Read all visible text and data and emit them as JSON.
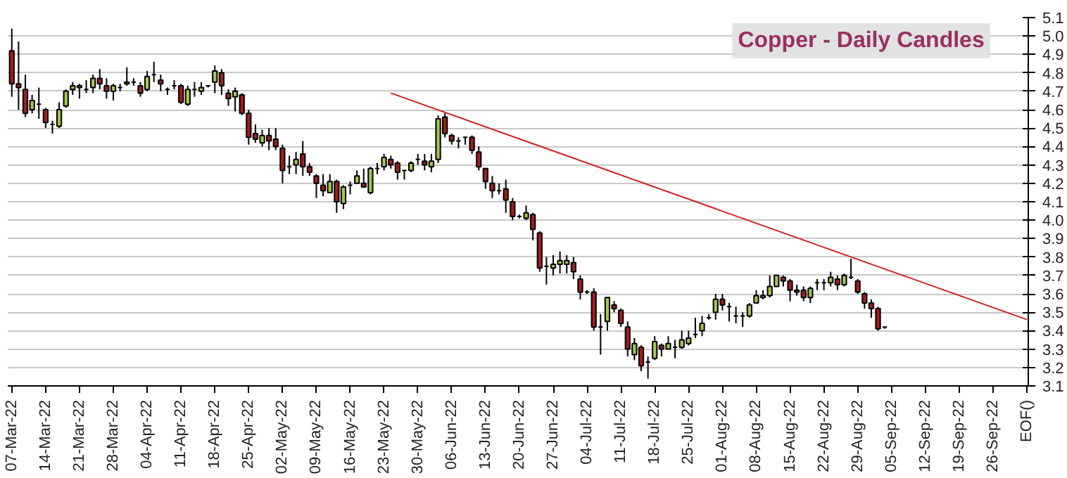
{
  "chart_data": {
    "type": "candlestick",
    "title": "Copper - Daily Candles",
    "categories": [
      "07-Mar-22",
      null,
      null,
      null,
      null,
      "14-Mar-22",
      null,
      null,
      null,
      null,
      "21-Mar-22",
      null,
      null,
      null,
      null,
      "28-Mar-22",
      null,
      null,
      null,
      null,
      "04-Apr-22",
      null,
      null,
      null,
      null,
      "11-Apr-22",
      null,
      null,
      null,
      null,
      "18-Apr-22",
      null,
      null,
      null,
      null,
      "25-Apr-22",
      null,
      null,
      null,
      null,
      "02-May-22",
      null,
      null,
      null,
      null,
      "09-May-22",
      null,
      null,
      null,
      null,
      "16-May-22",
      null,
      null,
      null,
      null,
      "23-May-22",
      null,
      null,
      null,
      null,
      "30-May-22",
      null,
      null,
      null,
      null,
      "06-Jun-22",
      null,
      null,
      null,
      null,
      "13-Jun-22",
      null,
      null,
      null,
      null,
      "20-Jun-22",
      null,
      null,
      null,
      null,
      "27-Jun-22",
      null,
      null,
      null,
      null,
      "04-Jul-22",
      null,
      null,
      null,
      null,
      "11-Jul-22",
      null,
      null,
      null,
      null,
      "18-Jul-22",
      null,
      null,
      null,
      null,
      "25-Jul-22",
      null,
      null,
      null,
      null,
      "01-Aug-22",
      null,
      null,
      null,
      null,
      "08-Aug-22",
      null,
      null,
      null,
      null,
      "15-Aug-22",
      null,
      null,
      null,
      null,
      "22-Aug-22",
      null,
      null,
      null,
      null,
      "29-Aug-22",
      null,
      null,
      null,
      null,
      "05-Sep-22",
      null,
      null,
      null,
      null,
      "12-Sep-22",
      null,
      null,
      null,
      null,
      "19-Sep-22",
      null,
      null,
      null,
      null,
      "26-Sep-22",
      null,
      null,
      null,
      null,
      "EOF()"
    ],
    "ohlc": [
      [
        4.92,
        5.04,
        4.67,
        4.74
      ],
      [
        4.74,
        4.97,
        4.6,
        4.72
      ],
      [
        4.71,
        4.79,
        4.56,
        4.58
      ],
      [
        4.6,
        4.68,
        4.58,
        4.65
      ],
      [
        4.63,
        4.72,
        4.55,
        4.63
      ],
      [
        4.6,
        4.61,
        4.5,
        4.53
      ],
      [
        4.52,
        4.54,
        4.47,
        4.52
      ],
      [
        4.51,
        4.64,
        4.5,
        4.6
      ],
      [
        4.62,
        4.71,
        4.61,
        4.7
      ],
      [
        4.71,
        4.75,
        4.68,
        4.73
      ],
      [
        4.72,
        4.74,
        4.66,
        4.73
      ],
      [
        4.71,
        4.76,
        4.69,
        4.71
      ],
      [
        4.72,
        4.79,
        4.69,
        4.77
      ],
      [
        4.77,
        4.82,
        4.71,
        4.74
      ],
      [
        4.73,
        4.77,
        4.66,
        4.7
      ],
      [
        4.7,
        4.74,
        4.65,
        4.73
      ],
      [
        4.72,
        4.74,
        4.7,
        4.72
      ],
      [
        4.74,
        4.83,
        4.73,
        4.75
      ],
      [
        4.75,
        4.77,
        4.73,
        4.75
      ],
      [
        4.73,
        4.75,
        4.67,
        4.69
      ],
      [
        4.71,
        4.81,
        4.7,
        4.78
      ],
      [
        4.79,
        4.86,
        4.75,
        4.79
      ],
      [
        4.76,
        4.79,
        4.7,
        4.74
      ],
      [
        4.71,
        4.72,
        4.68,
        4.71
      ],
      [
        4.73,
        4.76,
        4.71,
        4.73
      ],
      [
        4.73,
        4.74,
        4.63,
        4.64
      ],
      [
        4.63,
        4.73,
        4.62,
        4.71
      ],
      [
        4.71,
        4.75,
        4.67,
        4.71
      ],
      [
        4.7,
        4.75,
        4.68,
        4.72
      ],
      [
        4.73,
        4.73,
        4.72,
        4.73
      ],
      [
        4.75,
        4.84,
        4.69,
        4.81
      ],
      [
        4.8,
        4.82,
        4.68,
        4.73
      ],
      [
        4.69,
        4.71,
        4.62,
        4.66
      ],
      [
        4.67,
        4.72,
        4.59,
        4.7
      ],
      [
        4.68,
        4.69,
        4.57,
        4.58
      ],
      [
        4.58,
        4.6,
        4.41,
        4.45
      ],
      [
        4.47,
        4.52,
        4.42,
        4.44
      ],
      [
        4.42,
        4.49,
        4.4,
        4.46
      ],
      [
        4.46,
        4.5,
        4.38,
        4.43
      ],
      [
        4.44,
        4.5,
        4.38,
        4.4
      ],
      [
        4.39,
        4.41,
        4.2,
        4.27
      ],
      [
        4.29,
        4.35,
        4.25,
        4.29
      ],
      [
        4.3,
        4.37,
        4.25,
        4.33
      ],
      [
        4.36,
        4.43,
        4.24,
        4.29
      ],
      [
        4.29,
        4.31,
        4.24,
        4.26
      ],
      [
        4.24,
        4.25,
        4.12,
        4.2
      ],
      [
        4.19,
        4.25,
        4.13,
        4.16
      ],
      [
        4.15,
        4.25,
        4.15,
        4.21
      ],
      [
        4.21,
        4.22,
        4.04,
        4.1
      ],
      [
        4.09,
        4.19,
        4.06,
        4.18
      ],
      [
        4.19,
        4.21,
        4.14,
        4.19
      ],
      [
        4.2,
        4.27,
        4.2,
        4.24
      ],
      [
        4.2,
        4.28,
        4.18,
        4.18
      ],
      [
        4.15,
        4.29,
        4.14,
        4.28
      ],
      [
        4.28,
        4.31,
        4.25,
        4.28
      ],
      [
        4.29,
        4.36,
        4.27,
        4.34
      ],
      [
        4.33,
        4.35,
        4.28,
        4.3
      ],
      [
        4.31,
        4.32,
        4.22,
        4.26
      ],
      [
        4.27,
        4.27,
        4.22,
        4.27
      ],
      [
        4.27,
        4.32,
        4.26,
        4.31
      ],
      [
        4.33,
        4.36,
        4.3,
        4.33
      ],
      [
        4.32,
        4.36,
        4.27,
        4.3
      ],
      [
        4.29,
        4.36,
        4.26,
        4.32
      ],
      [
        4.33,
        4.57,
        4.31,
        4.55
      ],
      [
        4.56,
        4.58,
        4.45,
        4.47
      ],
      [
        4.46,
        4.47,
        4.41,
        4.43
      ],
      [
        4.43,
        4.45,
        4.39,
        4.43
      ],
      [
        4.45,
        4.45,
        4.41,
        4.45
      ],
      [
        4.45,
        4.46,
        4.36,
        4.38
      ],
      [
        4.37,
        4.4,
        4.27,
        4.29
      ],
      [
        4.28,
        4.28,
        4.17,
        4.21
      ],
      [
        4.2,
        4.24,
        4.12,
        4.16
      ],
      [
        4.16,
        4.2,
        4.14,
        4.16
      ],
      [
        4.17,
        4.22,
        4.04,
        4.11
      ],
      [
        4.1,
        4.12,
        4.0,
        4.02
      ],
      [
        4.02,
        4.03,
        4.01,
        4.02
      ],
      [
        4.01,
        4.08,
        4.0,
        4.04
      ],
      [
        4.03,
        4.04,
        3.89,
        3.95
      ],
      [
        3.93,
        3.94,
        3.72,
        3.74
      ],
      [
        3.75,
        3.8,
        3.65,
        3.75
      ],
      [
        3.74,
        3.81,
        3.7,
        3.76
      ],
      [
        3.76,
        3.83,
        3.71,
        3.78
      ],
      [
        3.76,
        3.81,
        3.71,
        3.78
      ],
      [
        3.77,
        3.8,
        3.68,
        3.72
      ],
      [
        3.68,
        3.7,
        3.57,
        3.61
      ],
      [
        3.61,
        3.62,
        3.6,
        3.61
      ],
      [
        3.61,
        3.63,
        3.4,
        3.42
      ],
      [
        3.42,
        3.49,
        3.27,
        3.42
      ],
      [
        3.45,
        3.58,
        3.4,
        3.58
      ],
      [
        3.54,
        3.56,
        3.5,
        3.52
      ],
      [
        3.51,
        3.52,
        3.42,
        3.44
      ],
      [
        3.42,
        3.45,
        3.26,
        3.3
      ],
      [
        3.27,
        3.36,
        3.24,
        3.33
      ],
      [
        3.31,
        3.32,
        3.18,
        3.21
      ],
      [
        3.23,
        3.26,
        3.14,
        3.23
      ],
      [
        3.25,
        3.37,
        3.24,
        3.34
      ],
      [
        3.32,
        3.33,
        3.26,
        3.3
      ],
      [
        3.3,
        3.37,
        3.3,
        3.33
      ],
      [
        3.31,
        3.35,
        3.25,
        3.31
      ],
      [
        3.31,
        3.4,
        3.3,
        3.35
      ],
      [
        3.33,
        3.4,
        3.32,
        3.36
      ],
      [
        3.38,
        3.47,
        3.36,
        3.38
      ],
      [
        3.4,
        3.48,
        3.37,
        3.44
      ],
      [
        3.47,
        3.49,
        3.46,
        3.47
      ],
      [
        3.5,
        3.6,
        3.46,
        3.57
      ],
      [
        3.57,
        3.6,
        3.51,
        3.54
      ],
      [
        3.53,
        3.55,
        3.45,
        3.53
      ],
      [
        3.48,
        3.53,
        3.44,
        3.48
      ],
      [
        3.48,
        3.5,
        3.42,
        3.48
      ],
      [
        3.48,
        3.55,
        3.47,
        3.54
      ],
      [
        3.55,
        3.62,
        3.55,
        3.59
      ],
      [
        3.58,
        3.62,
        3.57,
        3.59
      ],
      [
        3.59,
        3.7,
        3.58,
        3.64
      ],
      [
        3.64,
        3.7,
        3.64,
        3.7
      ],
      [
        3.69,
        3.7,
        3.64,
        3.67
      ],
      [
        3.67,
        3.68,
        3.56,
        3.62
      ],
      [
        3.62,
        3.65,
        3.59,
        3.61
      ],
      [
        3.62,
        3.64,
        3.56,
        3.58
      ],
      [
        3.58,
        3.64,
        3.55,
        3.63
      ],
      [
        3.66,
        3.68,
        3.62,
        3.66
      ],
      [
        3.66,
        3.68,
        3.62,
        3.66
      ],
      [
        3.66,
        3.72,
        3.64,
        3.69
      ],
      [
        3.68,
        3.7,
        3.62,
        3.65
      ],
      [
        3.65,
        3.71,
        3.64,
        3.7
      ],
      [
        3.69,
        3.79,
        3.68,
        3.69
      ],
      [
        3.67,
        3.68,
        3.6,
        3.61
      ],
      [
        3.6,
        3.61,
        3.52,
        3.55
      ],
      [
        3.55,
        3.57,
        3.47,
        3.52
      ],
      [
        3.52,
        3.53,
        3.4,
        3.41
      ],
      [
        3.42,
        3.42,
        3.41,
        3.42
      ],
      null,
      null,
      null,
      null,
      null,
      null,
      null,
      null,
      null,
      null,
      null,
      null,
      null,
      null,
      null,
      null,
      null,
      null,
      null,
      null,
      null
    ],
    "colors": [
      "#a61c1c",
      "#a61c1c",
      "#a61c1c",
      "#a6c64c",
      "#000000",
      "#a61c1c",
      "#000000",
      "#a6c64c",
      "#a6c64c",
      "#a6c64c",
      "#a6c64c",
      "#000000",
      "#a6c64c",
      "#a61c1c",
      "#a61c1c",
      "#a6c64c",
      "#000000",
      "#a6c64c",
      "#000000",
      "#a61c1c",
      "#a6c64c",
      "#000000",
      "#a61c1c",
      "#000000",
      "#000000",
      "#a61c1c",
      "#a6c64c",
      "#000000",
      "#a6c64c",
      "#000000",
      "#a6c64c",
      "#a61c1c",
      "#a61c1c",
      "#a6c64c",
      "#a61c1c",
      "#a61c1c",
      "#a61c1c",
      "#a6c64c",
      "#a61c1c",
      "#a61c1c",
      "#a61c1c",
      "#000000",
      "#a6c64c",
      "#a61c1c",
      "#a61c1c",
      "#a61c1c",
      "#a61c1c",
      "#a6c64c",
      "#a61c1c",
      "#a6c64c",
      "#000000",
      "#a6c64c",
      "#a61c1c",
      "#a6c64c",
      "#000000",
      "#a6c64c",
      "#a61c1c",
      "#a61c1c",
      "#000000",
      "#a6c64c",
      "#000000",
      "#a61c1c",
      "#a6c64c",
      "#a6c64c",
      "#a61c1c",
      "#a61c1c",
      "#000000",
      "#000000",
      "#a61c1c",
      "#a61c1c",
      "#a61c1c",
      "#a61c1c",
      "#000000",
      "#a61c1c",
      "#a61c1c",
      "#000000",
      "#a6c64c",
      "#a61c1c",
      "#a61c1c",
      "#000000",
      "#a6c64c",
      "#a6c64c",
      "#a6c64c",
      "#a61c1c",
      "#a61c1c",
      "#000000",
      "#a61c1c",
      "#000000",
      "#a6c64c",
      "#a61c1c",
      "#a61c1c",
      "#a61c1c",
      "#a6c64c",
      "#a61c1c",
      "#000000",
      "#a6c64c",
      "#a61c1c",
      "#a6c64c",
      "#000000",
      "#a6c64c",
      "#a6c64c",
      "#000000",
      "#a6c64c",
      "#000000",
      "#a6c64c",
      "#a61c1c",
      "#000000",
      "#000000",
      "#000000",
      "#a6c64c",
      "#a6c64c",
      "#a6c64c",
      "#a6c64c",
      "#a6c64c",
      "#a61c1c",
      "#a61c1c",
      "#a61c1c",
      "#a61c1c",
      "#a6c64c",
      "#000000",
      "#000000",
      "#a6c64c",
      "#a61c1c",
      "#a6c64c",
      "#000000",
      "#a61c1c",
      "#a61c1c",
      "#a61c1c",
      "#a61c1c",
      "#000000",
      null,
      null,
      null,
      null,
      null,
      null,
      null,
      null,
      null,
      null,
      null,
      null,
      null,
      null,
      null,
      null,
      null,
      null,
      null,
      null,
      null
    ],
    "series": [
      {
        "type": "line",
        "color": "#d42020",
        "values": [
          null,
          null,
          null,
          null,
          null,
          null,
          null,
          null,
          null,
          null,
          null,
          null,
          null,
          null,
          null,
          null,
          null,
          null,
          null,
          null,
          null,
          null,
          null,
          null,
          null,
          null,
          null,
          null,
          null,
          null,
          null,
          null,
          null,
          null,
          null,
          null,
          null,
          null,
          null,
          null,
          null,
          null,
          null,
          null,
          null,
          null,
          null,
          null,
          null,
          null,
          null,
          null,
          null,
          null,
          null,
          null,
          4.69,
          null,
          null,
          null,
          null,
          null,
          null,
          null,
          null,
          null,
          null,
          null,
          null,
          null,
          null,
          null,
          null,
          null,
          null,
          null,
          null,
          null,
          null,
          null,
          null,
          null,
          null,
          null,
          null,
          null,
          null,
          null,
          null,
          null,
          null,
          null,
          null,
          null,
          null,
          null,
          null,
          null,
          null,
          null,
          null,
          null,
          null,
          null,
          null,
          null,
          null,
          null,
          null,
          null,
          null,
          null,
          null,
          null,
          null,
          null,
          null,
          null,
          null,
          null,
          null,
          null,
          null,
          null,
          null,
          null,
          null,
          null,
          null,
          null,
          null,
          null,
          null,
          null,
          null,
          null,
          null,
          null,
          null,
          null,
          null,
          null,
          null,
          null,
          null,
          null,
          null,
          null,
          null,
          null,
          3.46
        ]
      }
    ],
    "ylim": [
      3.1,
      5.1
    ],
    "yticks": [
      3.1,
      3.2,
      3.3,
      3.4,
      3.5,
      3.6,
      3.7,
      3.8,
      3.9,
      {
        "value": 4,
        "label": "4.0"
      },
      4.1,
      4.2,
      4.3,
      4.4,
      4.5,
      4.6,
      4.7,
      4.8,
      4.9,
      {
        "value": 5,
        "label": "5.0"
      },
      5.1
    ],
    "grid": "y"
  }
}
